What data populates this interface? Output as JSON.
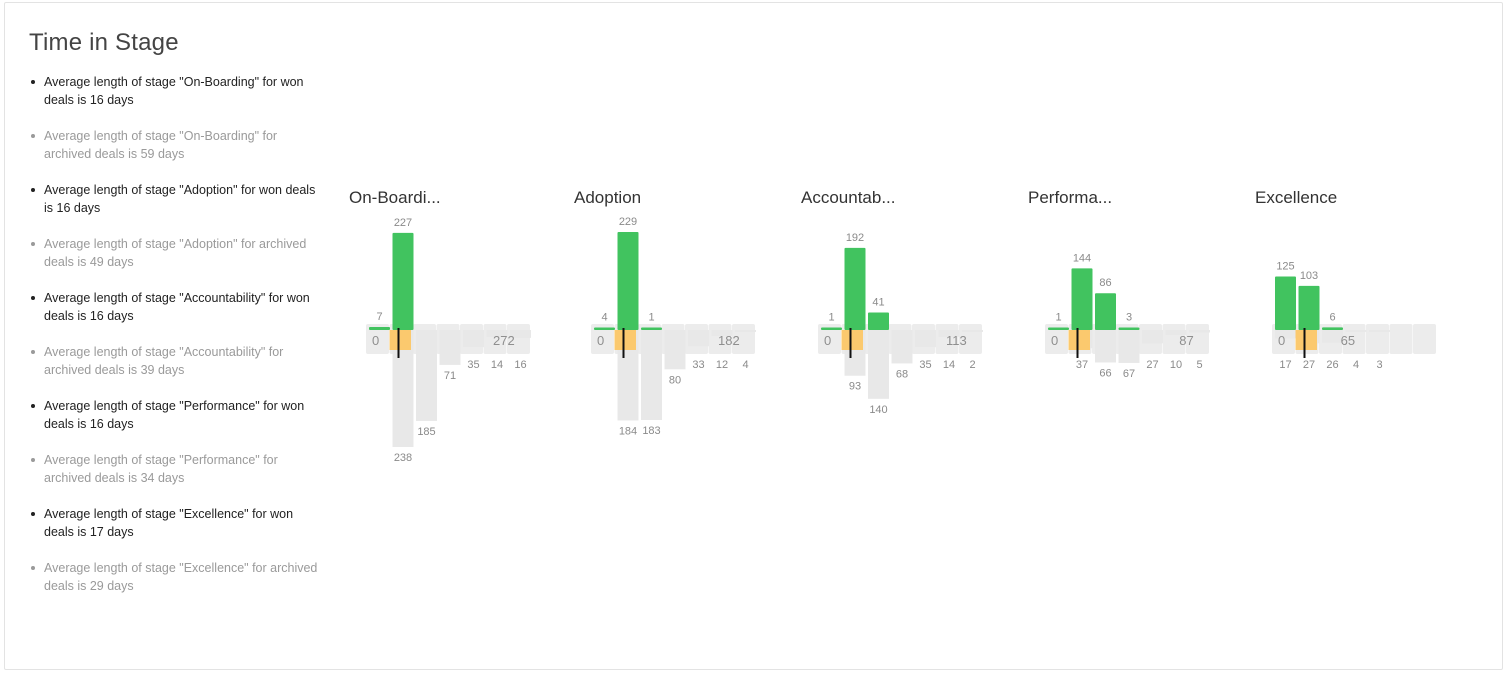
{
  "header": {
    "title": "Time in Stage"
  },
  "summaries": [
    {
      "kind": "won",
      "text": "Average length of stage \"On-Boarding\" for won deals is 16 days"
    },
    {
      "kind": "archived",
      "text": "Average length of stage \"On-Boarding\" for archived deals is 59 days"
    },
    {
      "kind": "won",
      "text": "Average length of stage \"Adoption\" for won deals is 16 days"
    },
    {
      "kind": "archived",
      "text": "Average length of stage \"Adoption\" for archived deals is 49 days"
    },
    {
      "kind": "won",
      "text": "Average length of stage \"Accountability\" for won deals is 16 days"
    },
    {
      "kind": "archived",
      "text": "Average length of stage \"Accountability\" for archived deals is 39 days"
    },
    {
      "kind": "won",
      "text": "Average length of stage \"Performance\" for won deals is 16 days"
    },
    {
      "kind": "archived",
      "text": "Average length of stage \"Performance\" for archived deals is 34 days"
    },
    {
      "kind": "won",
      "text": "Average length of stage \"Excellence\" for won deals is 17 days"
    },
    {
      "kind": "archived",
      "text": "Average length of stage \"Excellence\" for archived deals is 29 days"
    }
  ],
  "colors": {
    "won": "#41c35f",
    "archived": "#e8e8e8",
    "axis": "#ececec",
    "average_marker": "#fbc96e",
    "median_line": "#111111"
  },
  "chart_data": [
    {
      "type": "bar",
      "title": "On-Boardi...",
      "axis_min_label": "0",
      "axis_max_label": "272",
      "won": [
        7,
        227,
        null,
        null,
        null,
        null,
        null
      ],
      "archived": [
        null,
        238,
        185,
        71,
        35,
        14,
        16
      ]
    },
    {
      "type": "bar",
      "title": "Adoption",
      "axis_min_label": "0",
      "axis_max_label": "182",
      "won": [
        4,
        229,
        1,
        null,
        null,
        null,
        null
      ],
      "archived": [
        null,
        184,
        183,
        80,
        33,
        12,
        4
      ]
    },
    {
      "type": "bar",
      "title": "Accountab...",
      "axis_min_label": "0",
      "axis_max_label": "113",
      "won": [
        1,
        192,
        41,
        null,
        null,
        null,
        null
      ],
      "archived": [
        null,
        93,
        140,
        68,
        35,
        14,
        2
      ]
    },
    {
      "type": "bar",
      "title": "Performa...",
      "axis_min_label": "0",
      "axis_max_label": "87",
      "won": [
        1,
        144,
        86,
        3,
        null,
        null,
        null
      ],
      "archived": [
        null,
        37,
        66,
        67,
        27,
        10,
        5
      ]
    },
    {
      "type": "bar",
      "title": "Excellence",
      "axis_min_label": "0",
      "axis_max_label": "65",
      "won": [
        125,
        103,
        6,
        null,
        null,
        null
      ],
      "archived": [
        17,
        27,
        26,
        4,
        3,
        null
      ]
    }
  ]
}
